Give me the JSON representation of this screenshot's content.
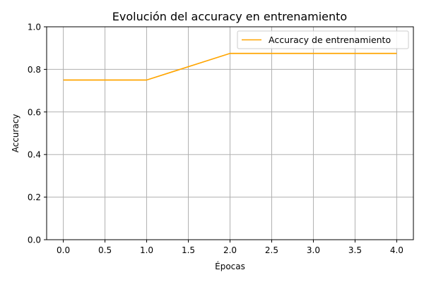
{
  "chart_data": {
    "type": "line",
    "title": "Evolución del accuracy en entrenamiento",
    "xlabel": "Épocas",
    "ylabel": "Accuracy",
    "xlim": [
      -0.2,
      4.2
    ],
    "ylim": [
      0.0,
      1.0
    ],
    "xticks": [
      0.0,
      0.5,
      1.0,
      1.5,
      2.0,
      2.5,
      3.0,
      3.5,
      4.0
    ],
    "xtick_labels": [
      "0.0",
      "0.5",
      "1.0",
      "1.5",
      "2.0",
      "2.5",
      "3.0",
      "3.5",
      "4.0"
    ],
    "yticks": [
      0.0,
      0.2,
      0.4,
      0.6,
      0.8,
      1.0
    ],
    "ytick_labels": [
      "0.0",
      "0.2",
      "0.4",
      "0.6",
      "0.8",
      "1.0"
    ],
    "grid": true,
    "legend_position": "top-right",
    "series": [
      {
        "name": "Accuracy de entrenamiento",
        "color": "#ffa500",
        "x": [
          0,
          1,
          2,
          3,
          4
        ],
        "y": [
          0.75,
          0.75,
          0.875,
          0.875,
          0.875
        ]
      }
    ]
  }
}
